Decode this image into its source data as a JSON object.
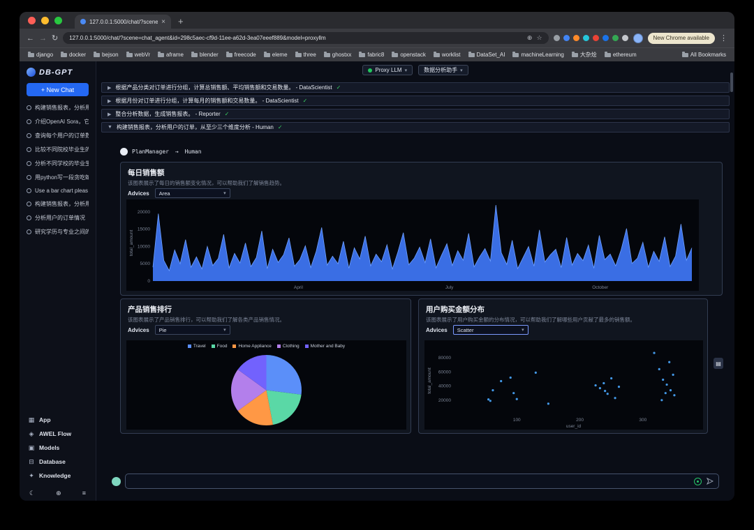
{
  "theme": {
    "accent": "#2468f2",
    "check_green": "#3ad163",
    "area_blue": "#3d74f0",
    "status_green": "#22c55e"
  },
  "browser": {
    "tab_title": "127.0.0.1:5000/chat/?scene...",
    "url": "127.0.0.1:5000/chat/?scene=chat_agent&id=298c5aec-cf9d-11ee-a62d-3ea07eeef889&model=proxyllm",
    "update_button": "New Chrome available",
    "all_bookmarks_label": "All Bookmarks",
    "bookmarks": [
      "django",
      "docker",
      "bejson",
      "webVr",
      "aframe",
      "blender",
      "freecode",
      "eleme",
      "three",
      "ghostxx",
      "fabric8",
      "openstack",
      "worklist",
      "DataSet_AI",
      "machineLearning",
      "大杂烩",
      "ethereum"
    ],
    "extensions": [
      {
        "name": "pip-extension-icon",
        "color": "#9aa0a6"
      },
      {
        "name": "blue-extension-icon",
        "color": "#4285f4"
      },
      {
        "name": "orange-extension-icon",
        "color": "#ff8a2a"
      },
      {
        "name": "teal-extension-icon",
        "color": "#26c6da"
      },
      {
        "name": "red-extension-icon",
        "color": "#ea4335"
      },
      {
        "name": "blue-circle-extension-icon",
        "color": "#1a73e8"
      },
      {
        "name": "green-extension-icon",
        "color": "#34a853"
      },
      {
        "name": "puzzle-extension-icon",
        "color": "#c4c7cc"
      }
    ]
  },
  "sidebar": {
    "logo_text": "DB-GPT",
    "new_chat_label": "+ New Chat",
    "history": [
      "构建销售报表，分析用",
      "介绍OpenAI Sora，它",
      "查询每个用户的订单数",
      "比较不同院校毕业生的",
      "分析不同学校的毕业生",
      "用python写一段贪吃蛇",
      "Use a bar chart pleas",
      "构建销售报表，分析用",
      "分析用户的订单情况",
      "研究学历与专业之间的"
    ],
    "footer_items": [
      {
        "label": "App",
        "icon": "app-grid-icon"
      },
      {
        "label": "AWEL Flow",
        "icon": "flow-icon"
      },
      {
        "label": "Models",
        "icon": "models-icon"
      },
      {
        "label": "Database",
        "icon": "database-icon"
      },
      {
        "label": "Knowledge",
        "icon": "knowledge-icon"
      }
    ]
  },
  "topbar": {
    "model_label": "Proxy LLM",
    "agent_label": "数据分析助手"
  },
  "plan": {
    "items": [
      {
        "label": "根据产品分类对订单进行分组，计算总销售额、平均销售额和交易数量。",
        "agent": "DataScientist",
        "expanded": false
      },
      {
        "label": "根据月份对订单进行分组，计算每月的销售额和交易数量。",
        "agent": "DataScientist",
        "expanded": false
      },
      {
        "label": "整合分析数据，生成销售报表。",
        "agent": "Reporter",
        "expanded": false
      },
      {
        "label": "构建销售报表，分析用户的订单，从至少三个维度分析",
        "agent": "Human",
        "expanded": true
      }
    ]
  },
  "message": {
    "sender": "PlanManager",
    "arrow": "→",
    "receiver": "Human"
  },
  "cards": {
    "daily": {
      "title": "每日销售额",
      "desc": "该图表展示了每日的销售额变化情况，可以帮助我们了解销售趋势。",
      "advices_label": "Advices",
      "selected": "Area"
    },
    "product": {
      "title": "产品销售排行",
      "desc": "该图表展示了产品销售排行，可以帮助我们了解各类产品销售情况。",
      "advices_label": "Advices",
      "selected": "Pie"
    },
    "user": {
      "title": "用户购买金额分布",
      "desc": "该图表展示了用户购买金额的分布情况，可以帮助我们了解哪些用户贡献了最多的销售额。",
      "advices_label": "Advices",
      "selected": "Scatter"
    }
  },
  "composer": {
    "placeholder": ""
  },
  "chart_data": [
    {
      "id": "daily-sales",
      "type": "area",
      "title": "每日销售额",
      "xlabel": "",
      "ylabel": "total_amount",
      "x_ticks": [
        "April",
        "July",
        "October"
      ],
      "x_tick_pos": [
        0.27,
        0.55,
        0.83
      ],
      "y_ticks": [
        0,
        5000,
        10000,
        15000,
        20000
      ],
      "ylim": [
        0,
        22000
      ],
      "color": "#3d74f0",
      "line_color": "#6ea0ff",
      "values": [
        4000,
        19500,
        6000,
        3000,
        9000,
        5000,
        12000,
        4000,
        7000,
        3500,
        10000,
        4500,
        6500,
        13500,
        3800,
        8000,
        5200,
        11000,
        4200,
        6800,
        14500,
        3600,
        9200,
        5400,
        7600,
        12500,
        4300,
        6200,
        10200,
        3900,
        8600,
        15500,
        4600,
        7200,
        5000,
        11500,
        3700,
        9600,
        6400,
        13000,
        4400,
        7800,
        5600,
        10500,
        3500,
        8400,
        14000,
        4700,
        6600,
        9800,
        5300,
        12200,
        3800,
        7400,
        10800,
        4500,
        8800,
        6000,
        13800,
        4100,
        7000,
        9400,
        5800,
        22000,
        8200,
        4800,
        11800,
        3600,
        6800,
        10000,
        4300,
        14800,
        5500,
        7600,
        9200,
        3900,
        12600,
        4600,
        8000,
        5900,
        10400,
        3700,
        13200,
        6200,
        7800,
        4400,
        9000,
        15200,
        5100,
        6600,
        11200,
        4000,
        8600,
        5700,
        12800,
        4200,
        7200,
        16500,
        6000,
        9600
      ]
    },
    {
      "id": "product-sales",
      "type": "pie",
      "title": "产品销售排行",
      "legend": [
        "Travel",
        "Food",
        "Home Appliance",
        "Clothing",
        "Mother and Baby"
      ],
      "values": [
        27,
        20,
        18,
        20,
        15
      ],
      "colors": [
        "#5b8ff9",
        "#5ad8a6",
        "#ff9845",
        "#b37feb",
        "#7262fd"
      ]
    },
    {
      "id": "user-purchase",
      "type": "scatter",
      "title": "用户购买金额分布",
      "xlabel": "user_id",
      "ylabel": "total_amount",
      "x_ticks": [
        100,
        200,
        300
      ],
      "y_ticks": [
        20000,
        40000,
        60000,
        80000
      ],
      "xlim": [
        0,
        380
      ],
      "ylim": [
        0,
        95000
      ],
      "color": "#4aa8ff",
      "points": [
        [
          55,
          21000
        ],
        [
          62,
          34000
        ],
        [
          58,
          19000
        ],
        [
          75,
          47000
        ],
        [
          95,
          30000
        ],
        [
          100,
          21500
        ],
        [
          130,
          59000
        ],
        [
          150,
          15000
        ],
        [
          90,
          52000
        ],
        [
          225,
          41000
        ],
        [
          232,
          37000
        ],
        [
          238,
          44000
        ],
        [
          244,
          29000
        ],
        [
          250,
          51000
        ],
        [
          256,
          23000
        ],
        [
          262,
          39000
        ],
        [
          240,
          33000
        ],
        [
          318,
          87000
        ],
        [
          326,
          64000
        ],
        [
          332,
          49000
        ],
        [
          338,
          42000
        ],
        [
          344,
          34000
        ],
        [
          350,
          27000
        ],
        [
          342,
          74000
        ],
        [
          336,
          30000
        ],
        [
          348,
          56000
        ],
        [
          330,
          20000
        ]
      ]
    }
  ]
}
